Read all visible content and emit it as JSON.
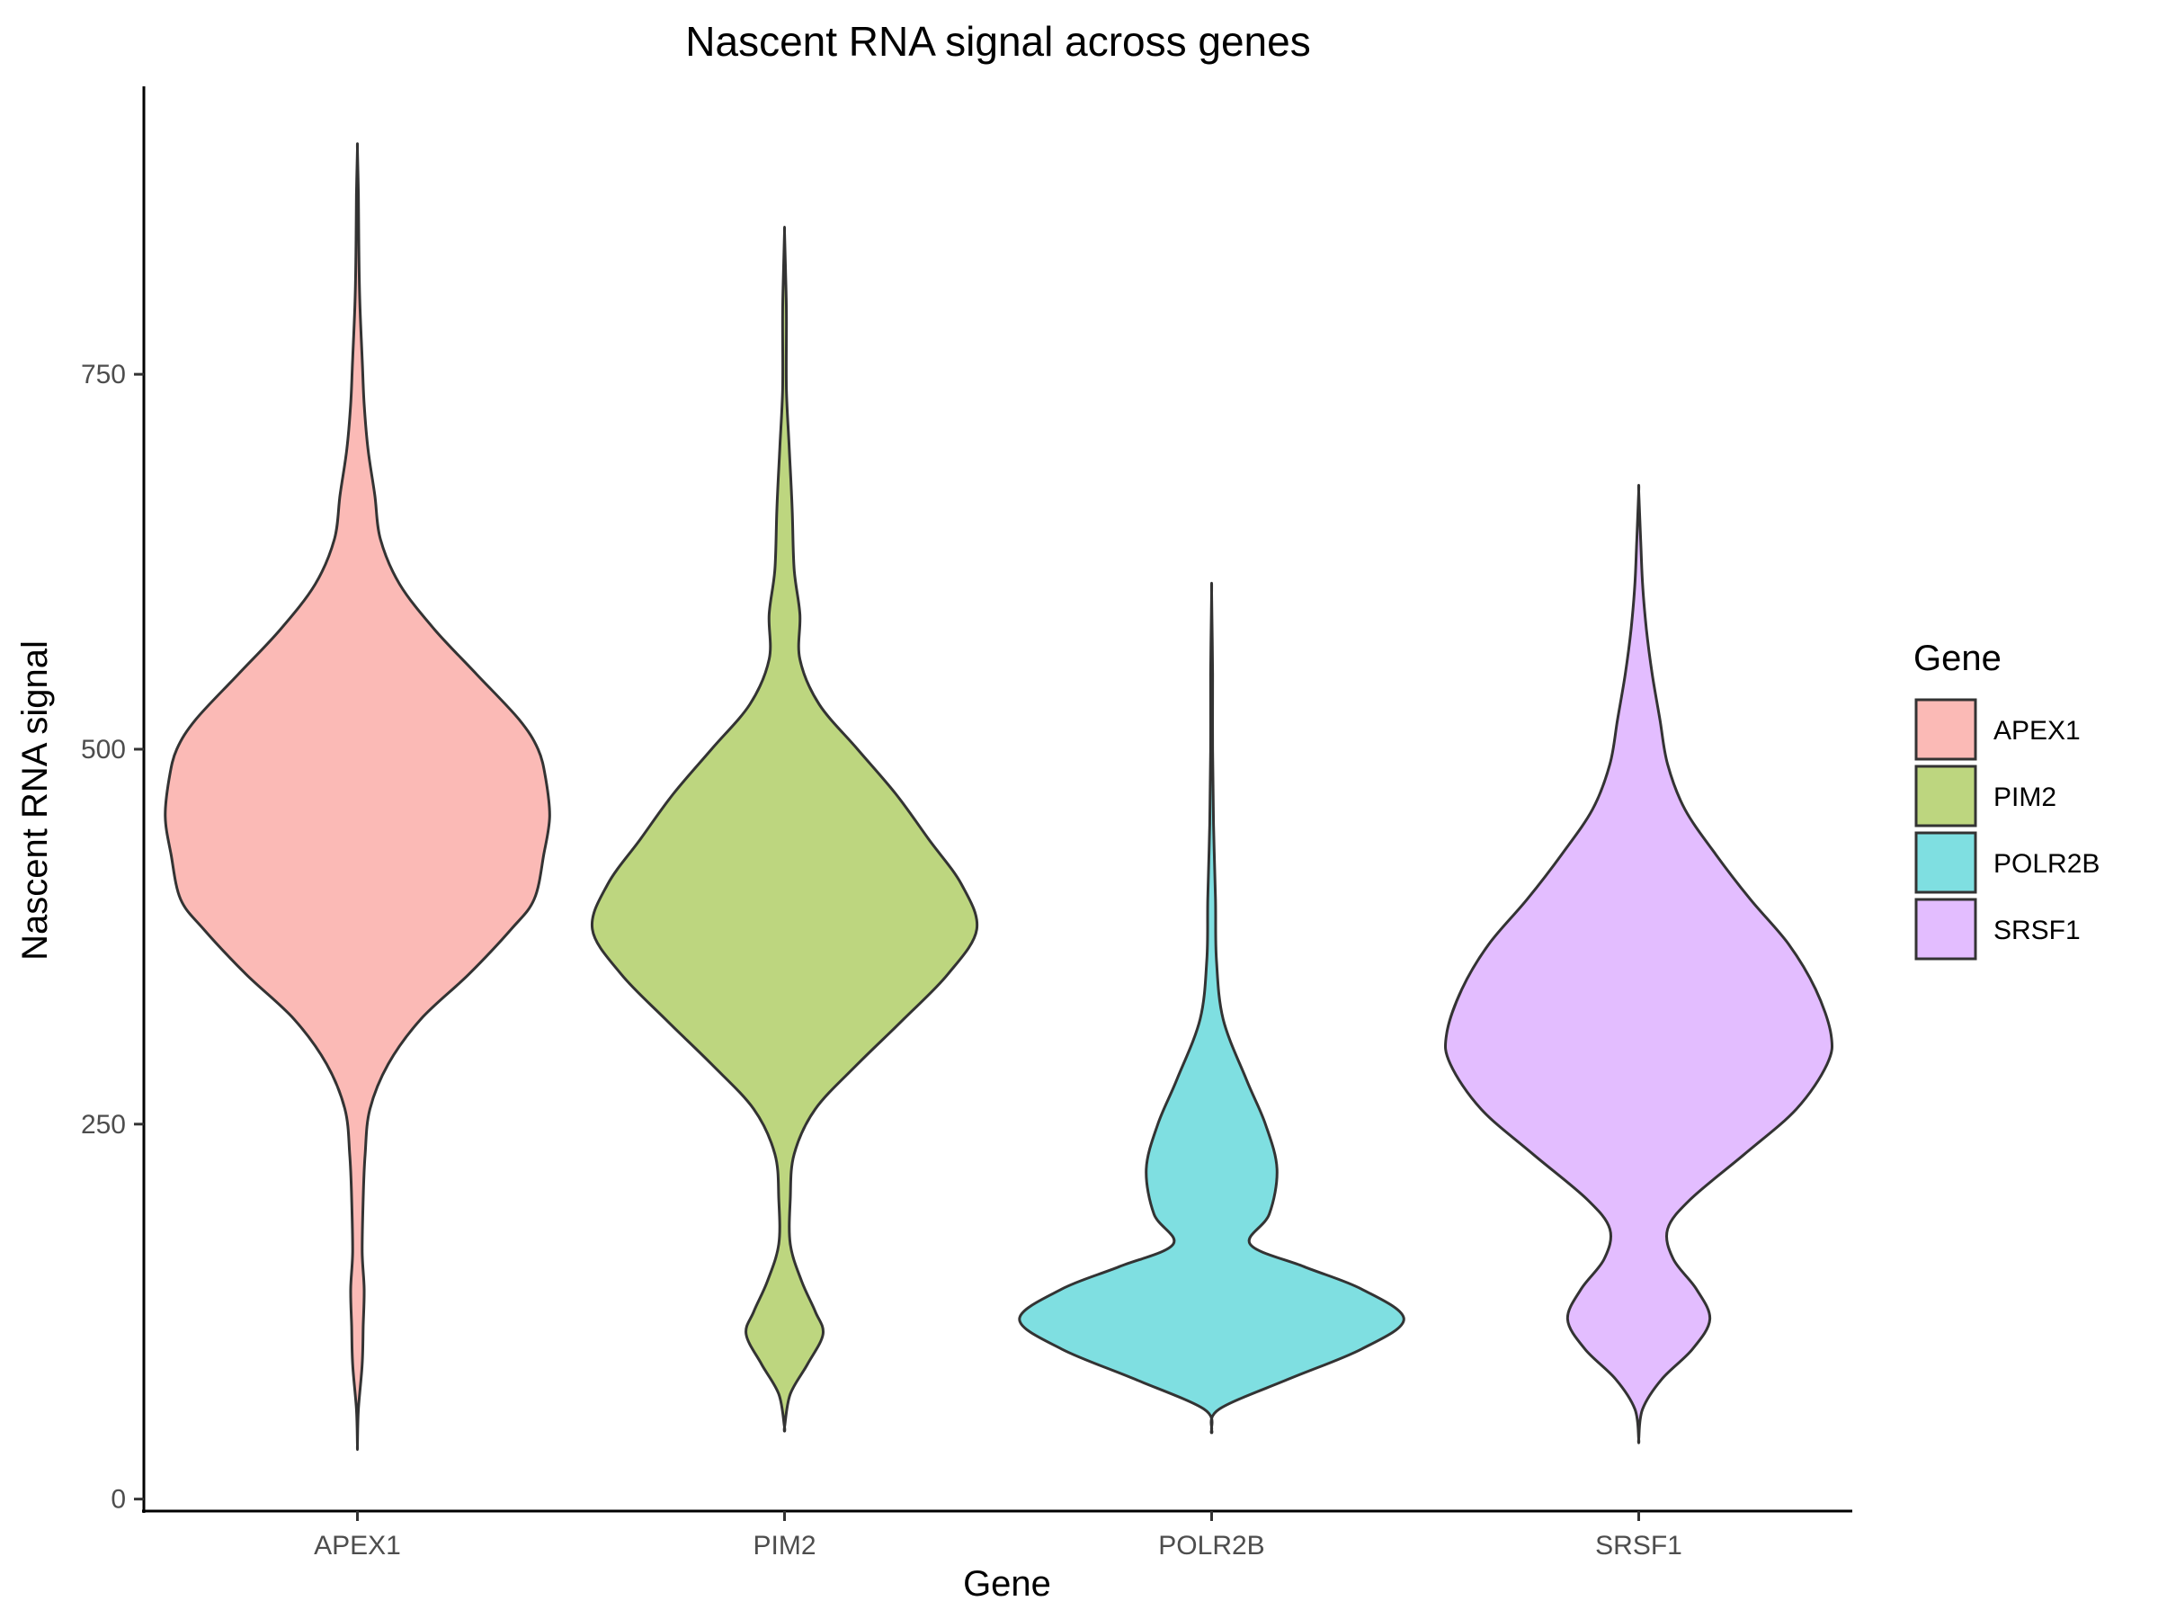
{
  "chart_data": {
    "type": "violin",
    "title": "Nascent RNA signal across genes",
    "xlabel": "Gene",
    "ylabel": "Nascent RNA signal",
    "categories": [
      "APEX1",
      "PIM2",
      "POLR2B",
      "SRSF1"
    ],
    "ylim": [
      -8,
      942
    ],
    "y_ticks": [
      0,
      250,
      500,
      750
    ],
    "grid": false,
    "legend": {
      "title": "Gene",
      "position": "right"
    },
    "series": [
      {
        "name": "APEX1",
        "color": "#F8766D",
        "min": 36,
        "max": 900,
        "density": [
          [
            36,
            0.0
          ],
          [
            60,
            0.005
          ],
          [
            90,
            0.025
          ],
          [
            115,
            0.03
          ],
          [
            140,
            0.035
          ],
          [
            165,
            0.025
          ],
          [
            200,
            0.03
          ],
          [
            230,
            0.04
          ],
          [
            260,
            0.065
          ],
          [
            290,
            0.16
          ],
          [
            320,
            0.33
          ],
          [
            350,
            0.58
          ],
          [
            380,
            0.8
          ],
          [
            400,
            0.92
          ],
          [
            430,
            0.97
          ],
          [
            455,
            1.0
          ],
          [
            480,
            0.98
          ],
          [
            500,
            0.94
          ],
          [
            520,
            0.84
          ],
          [
            550,
            0.62
          ],
          [
            580,
            0.4
          ],
          [
            610,
            0.22
          ],
          [
            640,
            0.12
          ],
          [
            670,
            0.09
          ],
          [
            700,
            0.055
          ],
          [
            730,
            0.035
          ],
          [
            760,
            0.025
          ],
          [
            800,
            0.012
          ],
          [
            840,
            0.007
          ],
          [
            870,
            0.005
          ],
          [
            900,
            0.0
          ]
        ]
      },
      {
        "name": "PIM2",
        "color": "#7CAE00",
        "min": 48,
        "max": 845,
        "density": [
          [
            48,
            0.0
          ],
          [
            70,
            0.03
          ],
          [
            90,
            0.12
          ],
          [
            110,
            0.2
          ],
          [
            125,
            0.16
          ],
          [
            145,
            0.09
          ],
          [
            170,
            0.03
          ],
          [
            200,
            0.03
          ],
          [
            230,
            0.05
          ],
          [
            260,
            0.16
          ],
          [
            290,
            0.38
          ],
          [
            320,
            0.62
          ],
          [
            350,
            0.85
          ],
          [
            380,
            1.0
          ],
          [
            410,
            0.92
          ],
          [
            440,
            0.75
          ],
          [
            470,
            0.58
          ],
          [
            500,
            0.38
          ],
          [
            530,
            0.18
          ],
          [
            560,
            0.08
          ],
          [
            590,
            0.08
          ],
          [
            620,
            0.05
          ],
          [
            660,
            0.04
          ],
          [
            700,
            0.025
          ],
          [
            740,
            0.01
          ],
          [
            790,
            0.01
          ],
          [
            820,
            0.005
          ],
          [
            845,
            0.0
          ]
        ]
      },
      {
        "name": "POLR2B",
        "color": "#00BFC4",
        "min": 46,
        "max": 604,
        "density": [
          [
            46,
            0.0
          ],
          [
            60,
            0.04
          ],
          [
            80,
            0.4
          ],
          [
            100,
            0.78
          ],
          [
            120,
            1.0
          ],
          [
            140,
            0.78
          ],
          [
            155,
            0.48
          ],
          [
            170,
            0.2
          ],
          [
            190,
            0.3
          ],
          [
            220,
            0.34
          ],
          [
            250,
            0.28
          ],
          [
            280,
            0.18
          ],
          [
            320,
            0.06
          ],
          [
            360,
            0.025
          ],
          [
            400,
            0.02
          ],
          [
            450,
            0.01
          ],
          [
            500,
            0.005
          ],
          [
            550,
            0.005
          ],
          [
            604,
            0.0
          ]
        ]
      },
      {
        "name": "SRSF1",
        "color": "#C77CFF",
        "min": 40,
        "max": 672,
        "density": [
          [
            40,
            0.0
          ],
          [
            60,
            0.02
          ],
          [
            80,
            0.12
          ],
          [
            100,
            0.28
          ],
          [
            120,
            0.37
          ],
          [
            140,
            0.3
          ],
          [
            160,
            0.18
          ],
          [
            180,
            0.15
          ],
          [
            200,
            0.27
          ],
          [
            230,
            0.55
          ],
          [
            260,
            0.82
          ],
          [
            290,
            0.98
          ],
          [
            310,
            1.0
          ],
          [
            340,
            0.92
          ],
          [
            370,
            0.78
          ],
          [
            400,
            0.58
          ],
          [
            430,
            0.4
          ],
          [
            460,
            0.24
          ],
          [
            490,
            0.15
          ],
          [
            520,
            0.11
          ],
          [
            550,
            0.07
          ],
          [
            580,
            0.04
          ],
          [
            610,
            0.02
          ],
          [
            640,
            0.01
          ],
          [
            672,
            0.0
          ]
        ]
      }
    ]
  }
}
